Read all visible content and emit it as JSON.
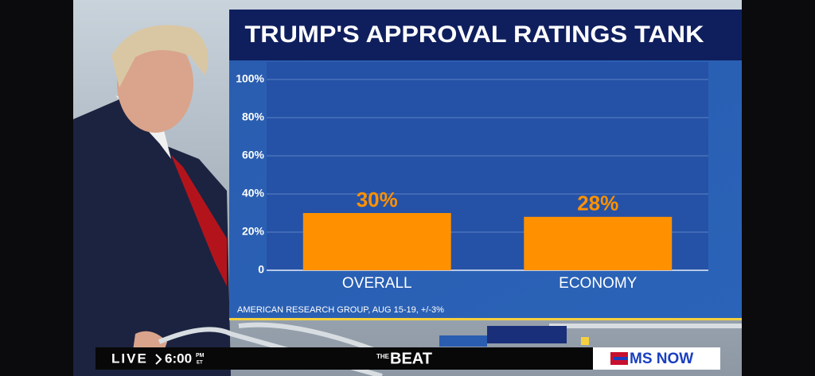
{
  "chart_data": {
    "type": "bar",
    "title": "TRUMP'S APPROVAL RATINGS TANK",
    "categories": [
      "OVERALL",
      "ECONOMY"
    ],
    "values": [
      30,
      28
    ],
    "value_labels": [
      "30%",
      "28%"
    ],
    "color": "#ff9100",
    "ylim": [
      0,
      100
    ],
    "yticks": [
      0,
      {
        "value": 20,
        "label": "20%"
      },
      {
        "value": 40,
        "label": "40%"
      },
      {
        "value": 60,
        "label": "60%"
      },
      {
        "value": 80,
        "label": "80%"
      },
      {
        "value": 100,
        "label": "100%"
      }
    ],
    "grid": true,
    "source": "AMERICAN RESEARCH GROUP, AUG 15-19, +/-3%"
  },
  "broadcast": {
    "live": "LIVE",
    "time": "6:00",
    "time_period": "PM",
    "time_zone": "ET",
    "show_prefix": "THE",
    "show_name": "BEAT",
    "network": "MS NOW"
  }
}
